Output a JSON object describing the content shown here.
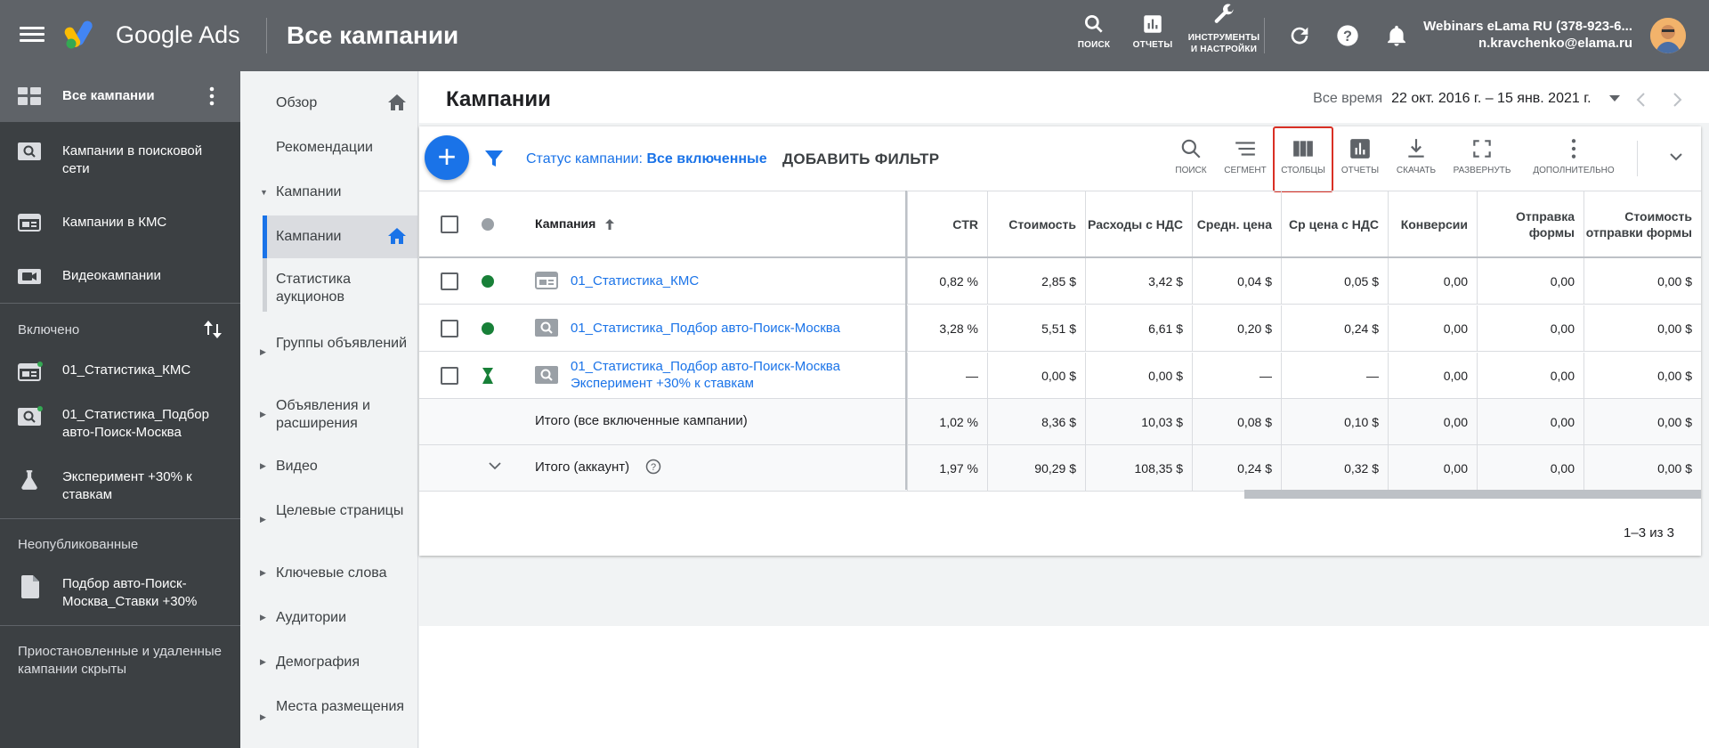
{
  "header": {
    "brand": "Google Ads",
    "title": "Все кампании",
    "tools": [
      {
        "label": "ПОИСК",
        "icon": "search-icon"
      },
      {
        "label": "ОТЧЕТЫ",
        "icon": "reports-icon"
      },
      {
        "label": "ИНСТРУМЕНТЫ И НАСТРОЙКИ",
        "icon": "wrench-icon"
      }
    ],
    "account_name": "Webinars eLama RU (378-923-6...",
    "account_email": "n.kravchenko@elama.ru"
  },
  "leftnav": {
    "all_campaigns": "Все кампании",
    "search_campaigns": "Кампании в поисковой сети",
    "display_campaigns": "Кампании в КМС",
    "video_campaigns": "Видеокампании",
    "enabled_section": "Включено",
    "enabled_items": [
      "01_Статистика_КМС",
      "01_Статистика_Подбор авто-Поиск-Москва",
      "Эксперимент +30% к ставкам"
    ],
    "unpublished_section": "Неопубликованные",
    "unpublished_item": "Подбор авто-Поиск-Москва_Ставки +30%",
    "hidden_note": "Приостановленные и удаленные кампании скрыты"
  },
  "midnav": {
    "items": [
      "Обзор",
      "Рекомендации",
      "Кампании",
      "Кампании",
      "Статистика аукционов",
      "Группы объявлений",
      "Объявления и расширения",
      "Видео",
      "Целевые страницы",
      "Ключевые слова",
      "Аудитории",
      "Демография",
      "Места размещения"
    ]
  },
  "main": {
    "title": "Кампании",
    "date_label": "Все время",
    "date_range": "22 окт. 2016 г. – 15 янв. 2021 г.",
    "status_prefix": "Статус кампании:",
    "status_value": "Все включенные",
    "add_filter": "ДОБАВИТЬ ФИЛЬТР",
    "toolbar": [
      "ПОИСК",
      "СЕГМЕНТ",
      "СТОЛБЦЫ",
      "ОТЧЕТЫ",
      "СКАЧАТЬ",
      "РАЗВЕРНУТЬ",
      "ДОПОЛНИТЕЛЬНО"
    ],
    "pager": "1–3 из 3"
  },
  "table": {
    "campaign_header": "Кампания",
    "columns": [
      "CTR",
      "Стоимость",
      "Расходы с НДС",
      "Средн. цена",
      "Ср цена с НДС",
      "Конверсии",
      "Отправка формы",
      "Стоимость отправки формы"
    ],
    "rows": [
      {
        "name": "01_Статистика_КМС",
        "values": [
          "0,82 %",
          "2,85 $",
          "3,42 $",
          "0,04 $",
          "0,05 $",
          "0,00",
          "0,00",
          "0,00 $"
        ]
      },
      {
        "name": "01_Статистика_Подбор авто-Поиск-Москва",
        "values": [
          "3,28 %",
          "5,51 $",
          "6,61 $",
          "0,20 $",
          "0,24 $",
          "0,00",
          "0,00",
          "0,00 $"
        ]
      },
      {
        "name": "01_Статистика_Подбор авто-Поиск-Москва Эксперимент +30% к ставкам",
        "values": [
          "—",
          "0,00 $",
          "0,00 $",
          "—",
          "—",
          "0,00",
          "0,00",
          "0,00 $"
        ]
      }
    ],
    "totals": [
      {
        "name": "Итого (все включенные кампании)",
        "values": [
          "1,02 %",
          "8,36 $",
          "10,03 $",
          "0,08 $",
          "0,10 $",
          "0,00",
          "0,00",
          "0,00 $"
        ]
      },
      {
        "name": "Итого (аккаунт)",
        "values": [
          "1,97 %",
          "90,29 $",
          "108,35 $",
          "0,24 $",
          "0,32 $",
          "0,00",
          "0,00",
          "0,00 $"
        ]
      }
    ]
  }
}
